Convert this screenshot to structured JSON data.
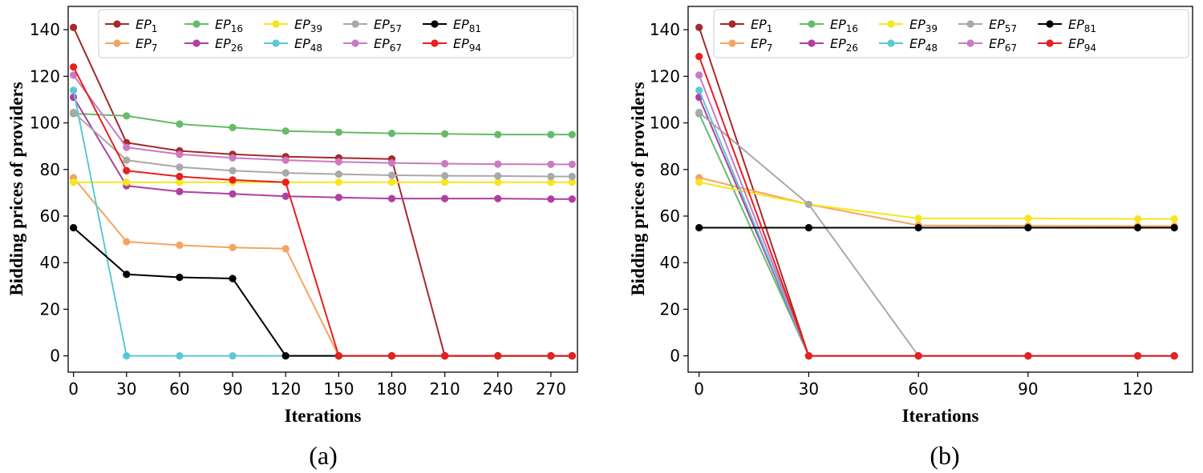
{
  "chart_data": [
    {
      "type": "line",
      "panel": "(a)",
      "xlabel": "Iterations",
      "ylabel": "Bidding prices of providers",
      "xlim": [
        -3,
        285
      ],
      "ylim": [
        -7,
        150
      ],
      "xticks": [
        0,
        30,
        60,
        90,
        120,
        150,
        180,
        210,
        240,
        270
      ],
      "yticks": [
        0,
        20,
        40,
        60,
        80,
        100,
        120,
        140
      ],
      "legend": {
        "placement": "top-right",
        "columns": 6
      },
      "series": [
        {
          "name": "EP",
          "sub": "1",
          "color": "#a52a2a",
          "x": [
            0,
            30,
            60,
            90,
            120,
            150,
            180,
            210,
            240,
            270,
            282
          ],
          "y": [
            141,
            91.5,
            88,
            86.5,
            85.5,
            85,
            84.5,
            0,
            0,
            0,
            0
          ]
        },
        {
          "name": "EP",
          "sub": "7",
          "color": "#f4a460",
          "x": [
            0,
            30,
            60,
            90,
            120,
            150,
            180,
            210,
            240,
            270,
            282
          ],
          "y": [
            76.5,
            49,
            47.5,
            46.5,
            46,
            0,
            0,
            0,
            0,
            0,
            0
          ]
        },
        {
          "name": "EP",
          "sub": "16",
          "color": "#66bb6a",
          "x": [
            0,
            30,
            60,
            90,
            120,
            150,
            180,
            210,
            240,
            270,
            282
          ],
          "y": [
            104,
            103,
            99.5,
            98,
            96.5,
            96,
            95.5,
            95.3,
            95,
            95,
            95
          ]
        },
        {
          "name": "EP",
          "sub": "26",
          "color": "#b03fa0",
          "x": [
            0,
            30,
            60,
            90,
            120,
            150,
            180,
            210,
            240,
            270,
            282
          ],
          "y": [
            111,
            73,
            70.5,
            69.5,
            68.5,
            68,
            67.5,
            67.5,
            67.5,
            67.3,
            67.3
          ]
        },
        {
          "name": "EP",
          "sub": "39",
          "color": "#f5e61e",
          "x": [
            0,
            30,
            60,
            90,
            120,
            150,
            180,
            210,
            240,
            270,
            282
          ],
          "y": [
            74.5,
            74.5,
            74.5,
            74.5,
            74.5,
            74.5,
            74.5,
            74.5,
            74.5,
            74.5,
            74.5
          ]
        },
        {
          "name": "EP",
          "sub": "48",
          "color": "#5bc8d6",
          "x": [
            0,
            30,
            60,
            90,
            120,
            150,
            180,
            210,
            240,
            270,
            282
          ],
          "y": [
            114,
            0,
            0,
            0,
            0,
            0,
            0,
            0,
            0,
            0,
            0
          ]
        },
        {
          "name": "EP",
          "sub": "57",
          "color": "#a9a9a9",
          "x": [
            0,
            30,
            60,
            90,
            120,
            150,
            180,
            210,
            240,
            270,
            282
          ],
          "y": [
            104.5,
            84,
            81,
            79.5,
            78.5,
            78,
            77.5,
            77.3,
            77.2,
            77,
            77
          ]
        },
        {
          "name": "EP",
          "sub": "67",
          "color": "#cc79c4",
          "x": [
            0,
            30,
            60,
            90,
            120,
            150,
            180,
            210,
            240,
            270,
            282
          ],
          "y": [
            120.5,
            89.5,
            86.5,
            85,
            84,
            83.3,
            82.8,
            82.5,
            82.3,
            82.2,
            82.2
          ]
        },
        {
          "name": "EP",
          "sub": "81",
          "color": "#000000",
          "x": [
            0,
            30,
            60,
            90,
            120,
            150,
            180,
            210,
            240,
            270,
            282
          ],
          "y": [
            55,
            35,
            33.7,
            33.2,
            0,
            0,
            0,
            0,
            0,
            0,
            0
          ]
        },
        {
          "name": "EP",
          "sub": "94",
          "color": "#e8201e",
          "x": [
            0,
            30,
            60,
            90,
            120,
            150,
            180,
            210,
            240,
            270,
            282
          ],
          "y": [
            124,
            79.5,
            77,
            75.5,
            74.5,
            0,
            0,
            0,
            0,
            0,
            0
          ]
        }
      ]
    },
    {
      "type": "line",
      "panel": "(b)",
      "xlabel": "Iterations",
      "ylabel": "Bidding prices of providers",
      "xlim": [
        -3,
        135
      ],
      "ylim": [
        -7,
        150
      ],
      "xticks": [
        0,
        30,
        60,
        90,
        120
      ],
      "yticks": [
        0,
        20,
        40,
        60,
        80,
        100,
        120,
        140
      ],
      "legend": {
        "placement": "top-right",
        "columns": 6
      },
      "series": [
        {
          "name": "EP",
          "sub": "1",
          "color": "#a52a2a",
          "x": [
            0,
            30,
            60,
            90,
            120,
            130
          ],
          "y": [
            141,
            0,
            0,
            0,
            0,
            0
          ]
        },
        {
          "name": "EP",
          "sub": "7",
          "color": "#f4a460",
          "x": [
            0,
            30,
            60,
            90,
            120,
            130
          ],
          "y": [
            76.5,
            65,
            56,
            55.8,
            55.7,
            55.7
          ]
        },
        {
          "name": "EP",
          "sub": "16",
          "color": "#66bb6a",
          "x": [
            0,
            30,
            60,
            90,
            120,
            130
          ],
          "y": [
            104,
            0,
            0,
            0,
            0,
            0
          ]
        },
        {
          "name": "EP",
          "sub": "26",
          "color": "#b03fa0",
          "x": [
            0,
            30,
            60,
            90,
            120,
            130
          ],
          "y": [
            111,
            0,
            0,
            0,
            0,
            0
          ]
        },
        {
          "name": "EP",
          "sub": "39",
          "color": "#f5e61e",
          "x": [
            0,
            30,
            60,
            90,
            120,
            130
          ],
          "y": [
            74.5,
            65,
            59,
            59,
            58.8,
            58.8
          ]
        },
        {
          "name": "EP",
          "sub": "48",
          "color": "#5bc8d6",
          "x": [
            0,
            30,
            60,
            90,
            120,
            130
          ],
          "y": [
            114,
            0,
            0,
            0,
            0,
            0
          ]
        },
        {
          "name": "EP",
          "sub": "57",
          "color": "#a9a9a9",
          "x": [
            0,
            30,
            60,
            90,
            120,
            130
          ],
          "y": [
            104.5,
            65,
            0,
            0,
            0,
            0
          ]
        },
        {
          "name": "EP",
          "sub": "67",
          "color": "#cc79c4",
          "x": [
            0,
            30,
            60,
            90,
            120,
            130
          ],
          "y": [
            120.5,
            0,
            0,
            0,
            0,
            0
          ]
        },
        {
          "name": "EP",
          "sub": "81",
          "color": "#000000",
          "x": [
            0,
            30,
            60,
            90,
            120,
            130
          ],
          "y": [
            55,
            55,
            55,
            55,
            55,
            55
          ]
        },
        {
          "name": "EP",
          "sub": "94",
          "color": "#e8201e",
          "x": [
            0,
            30,
            60,
            90,
            120,
            130
          ],
          "y": [
            128.5,
            0,
            0,
            0,
            0,
            0
          ]
        }
      ]
    }
  ]
}
